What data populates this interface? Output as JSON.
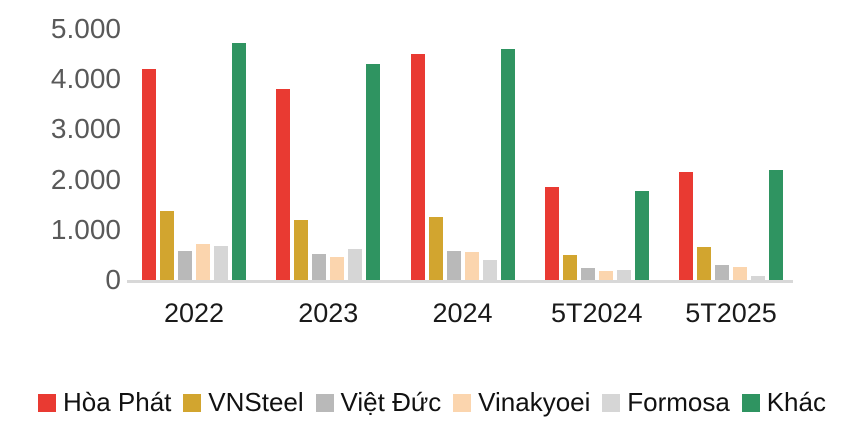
{
  "chart_data": {
    "type": "bar",
    "title": "",
    "xlabel": "",
    "ylabel": "",
    "categories": [
      "2022",
      "2023",
      "2024",
      "5T2024",
      "5T2025"
    ],
    "series": [
      {
        "name": "Hòa Phát",
        "color": "#e93a32",
        "values": [
          4200,
          3800,
          4500,
          1850,
          2150
        ]
      },
      {
        "name": "VNSteel",
        "color": "#d2a52f",
        "values": [
          1380,
          1200,
          1250,
          500,
          650
        ]
      },
      {
        "name": "Việt Đức",
        "color": "#b9b9b9",
        "values": [
          570,
          520,
          580,
          230,
          290
        ]
      },
      {
        "name": "Vinakyoei",
        "color": "#fbd5ae",
        "values": [
          720,
          450,
          560,
          180,
          260
        ]
      },
      {
        "name": "Formosa",
        "color": "#d6d6d6",
        "values": [
          670,
          620,
          400,
          190,
          70
        ]
      },
      {
        "name": "Khác",
        "color": "#2f9461",
        "values": [
          4730,
          4300,
          4600,
          1780,
          2200
        ]
      }
    ],
    "yticks": [
      "5.000",
      "4.000",
      "3.000",
      "2.000",
      "1.000",
      "0"
    ],
    "ylim": [
      0,
      5000
    ],
    "grid": false,
    "legend_position": "bottom",
    "axis_line_color": "#d8d8d8",
    "ytick_label_color": "#595959",
    "xtick_label_color": "#1a1a1a",
    "legend_text_color": "#111111"
  }
}
